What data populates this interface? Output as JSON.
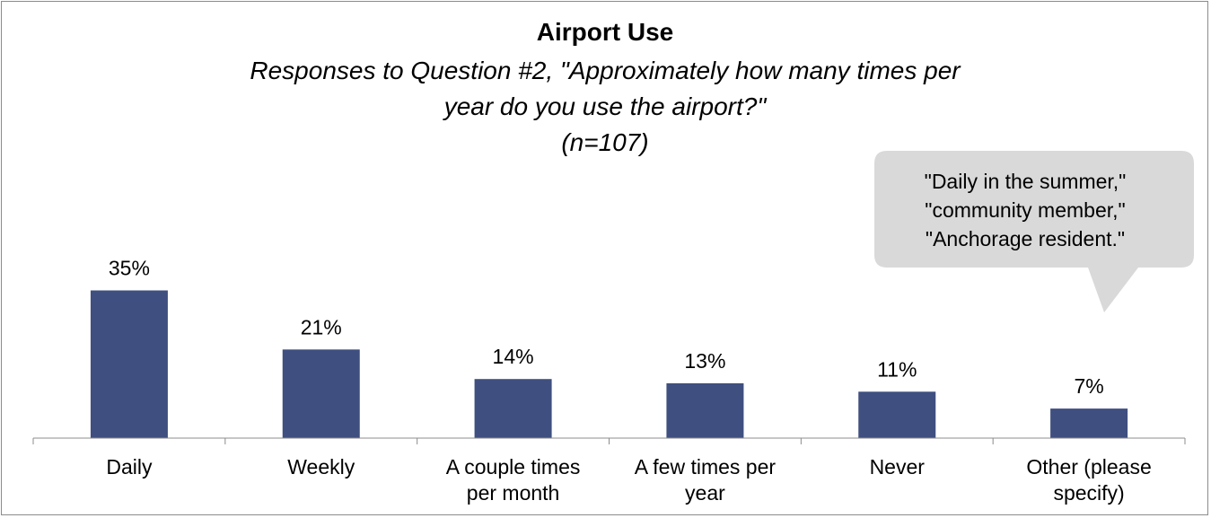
{
  "chart_data": {
    "type": "bar",
    "title": "Airport Use",
    "subtitle_lines": [
      "Responses to Question #2, \"Approximately how many times per",
      "year do you use the airport?\"",
      "(n=107)"
    ],
    "categories": [
      [
        "Daily"
      ],
      [
        "Weekly"
      ],
      [
        "A couple times",
        "per month"
      ],
      [
        "A few times per",
        "year"
      ],
      [
        "Never"
      ],
      [
        "Other (please",
        "specify)"
      ]
    ],
    "values": [
      35,
      21,
      14,
      13,
      11,
      7
    ],
    "value_labels": [
      "35%",
      "21%",
      "14%",
      "13%",
      "11%",
      "7%"
    ],
    "ylim": [
      0,
      40
    ],
    "grid": false,
    "legend": "none",
    "bar_color": "#3f4f7f",
    "callout": {
      "lines": [
        "\"Daily in the summer,\"",
        "\"community member,\"",
        "\"Anchorage resident.\""
      ],
      "fill": "#d9d9d9",
      "points_to": "Other (please specify)"
    }
  }
}
